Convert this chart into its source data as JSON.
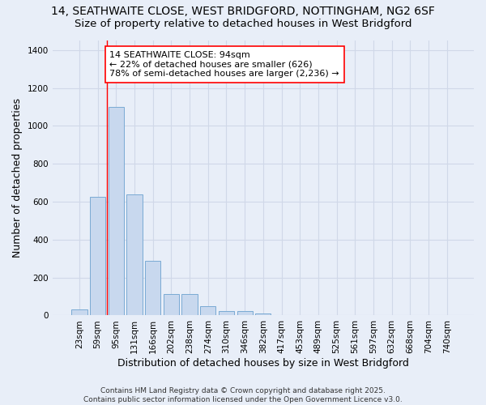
{
  "title_line1": "14, SEATHWAITE CLOSE, WEST BRIDGFORD, NOTTINGHAM, NG2 6SF",
  "title_line2": "Size of property relative to detached houses in West Bridgford",
  "xlabel": "Distribution of detached houses by size in West Bridgford",
  "ylabel": "Number of detached properties",
  "categories": [
    "23sqm",
    "59sqm",
    "95sqm",
    "131sqm",
    "166sqm",
    "202sqm",
    "238sqm",
    "274sqm",
    "310sqm",
    "346sqm",
    "382sqm",
    "417sqm",
    "453sqm",
    "489sqm",
    "525sqm",
    "561sqm",
    "597sqm",
    "632sqm",
    "668sqm",
    "704sqm",
    "740sqm"
  ],
  "values": [
    30,
    625,
    1100,
    640,
    290,
    115,
    115,
    50,
    22,
    22,
    12,
    0,
    0,
    0,
    0,
    0,
    0,
    0,
    0,
    0,
    0
  ],
  "bar_color": "#c8d8ee",
  "bar_edge_color": "#7aaad4",
  "vline_x": 1.5,
  "vline_color": "red",
  "annotation_text": "14 SEATHWAITE CLOSE: 94sqm\n← 22% of detached houses are smaller (626)\n78% of semi-detached houses are larger (2,236) →",
  "annotation_box_color": "white",
  "annotation_box_edge_color": "red",
  "ylim": [
    0,
    1450
  ],
  "yticks": [
    0,
    200,
    400,
    600,
    800,
    1000,
    1200,
    1400
  ],
  "bg_color": "#e8eef8",
  "grid_color": "#d0d8e8",
  "footer_line1": "Contains HM Land Registry data © Crown copyright and database right 2025.",
  "footer_line2": "Contains public sector information licensed under the Open Government Licence v3.0.",
  "title_fontsize": 10,
  "subtitle_fontsize": 9.5,
  "axis_label_fontsize": 9,
  "tick_fontsize": 7.5,
  "annotation_fontsize": 8,
  "footer_fontsize": 6.5
}
